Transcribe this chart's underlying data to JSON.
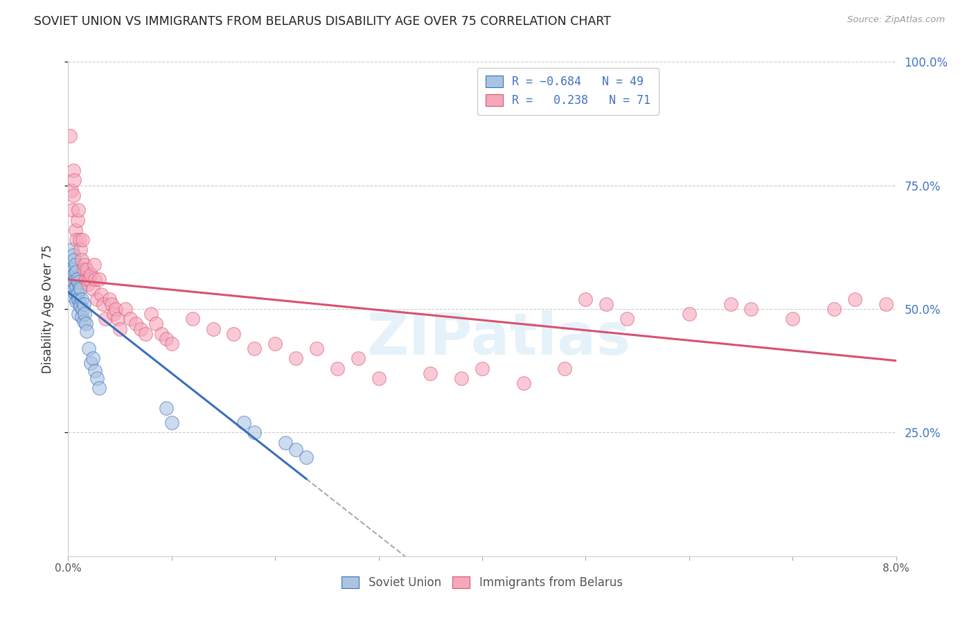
{
  "title": "SOVIET UNION VS IMMIGRANTS FROM BELARUS DISABILITY AGE OVER 75 CORRELATION CHART",
  "source": "Source: ZipAtlas.com",
  "ylabel": "Disability Age Over 75",
  "xmin": 0.0,
  "xmax": 0.08,
  "ymin": 0.0,
  "ymax": 1.0,
  "ytick_values": [
    0.25,
    0.5,
    0.75,
    1.0
  ],
  "ytick_labels": [
    "25.0%",
    "50.0%",
    "75.0%",
    "100.0%"
  ],
  "watermark": "ZIPatlas",
  "color_blue": "#aac4e2",
  "color_pink": "#f5a8bc",
  "line_blue": "#3a6fba",
  "line_pink": "#d95070",
  "grid_color": "#cccccc",
  "bg_color": "#ffffff",
  "su_x": [
    0.0002,
    0.0003,
    0.0003,
    0.0004,
    0.0004,
    0.0004,
    0.0005,
    0.0005,
    0.0005,
    0.0005,
    0.0006,
    0.0006,
    0.0006,
    0.0007,
    0.0007,
    0.0007,
    0.0008,
    0.0008,
    0.0008,
    0.0009,
    0.0009,
    0.001,
    0.001,
    0.001,
    0.0011,
    0.0011,
    0.0012,
    0.0012,
    0.0013,
    0.0013,
    0.0014,
    0.0015,
    0.0015,
    0.0016,
    0.0017,
    0.0018,
    0.002,
    0.0022,
    0.0024,
    0.0026,
    0.0028,
    0.003,
    0.0095,
    0.01,
    0.017,
    0.018,
    0.021,
    0.022,
    0.023
  ],
  "su_y": [
    0.58,
    0.56,
    0.54,
    0.62,
    0.59,
    0.56,
    0.61,
    0.58,
    0.555,
    0.525,
    0.6,
    0.57,
    0.54,
    0.59,
    0.56,
    0.53,
    0.575,
    0.545,
    0.515,
    0.56,
    0.53,
    0.555,
    0.52,
    0.49,
    0.545,
    0.51,
    0.54,
    0.505,
    0.52,
    0.485,
    0.5,
    0.51,
    0.475,
    0.49,
    0.47,
    0.455,
    0.42,
    0.39,
    0.4,
    0.375,
    0.36,
    0.34,
    0.3,
    0.27,
    0.27,
    0.25,
    0.23,
    0.215,
    0.2
  ],
  "bel_x": [
    0.0002,
    0.0003,
    0.0004,
    0.0005,
    0.0005,
    0.0006,
    0.0007,
    0.0008,
    0.0009,
    0.001,
    0.0011,
    0.0012,
    0.0013,
    0.0014,
    0.0015,
    0.0016,
    0.0017,
    0.0018,
    0.0019,
    0.002,
    0.0022,
    0.0024,
    0.0025,
    0.0026,
    0.0028,
    0.003,
    0.0032,
    0.0034,
    0.0036,
    0.004,
    0.0042,
    0.0044,
    0.0046,
    0.0048,
    0.005,
    0.0055,
    0.006,
    0.0065,
    0.007,
    0.0075,
    0.008,
    0.0085,
    0.009,
    0.0095,
    0.01,
    0.012,
    0.014,
    0.016,
    0.018,
    0.02,
    0.022,
    0.024,
    0.026,
    0.028,
    0.03,
    0.035,
    0.038,
    0.04,
    0.044,
    0.048,
    0.05,
    0.052,
    0.054,
    0.06,
    0.064,
    0.066,
    0.07,
    0.074,
    0.076,
    0.079
  ],
  "bel_y": [
    0.85,
    0.74,
    0.7,
    0.78,
    0.73,
    0.76,
    0.66,
    0.64,
    0.68,
    0.7,
    0.64,
    0.62,
    0.6,
    0.64,
    0.58,
    0.59,
    0.56,
    0.58,
    0.55,
    0.56,
    0.57,
    0.54,
    0.59,
    0.56,
    0.52,
    0.56,
    0.53,
    0.51,
    0.48,
    0.52,
    0.51,
    0.49,
    0.5,
    0.48,
    0.46,
    0.5,
    0.48,
    0.47,
    0.46,
    0.45,
    0.49,
    0.47,
    0.45,
    0.44,
    0.43,
    0.48,
    0.46,
    0.45,
    0.42,
    0.43,
    0.4,
    0.42,
    0.38,
    0.4,
    0.36,
    0.37,
    0.36,
    0.38,
    0.35,
    0.38,
    0.52,
    0.51,
    0.48,
    0.49,
    0.51,
    0.5,
    0.48,
    0.5,
    0.52,
    0.51
  ]
}
